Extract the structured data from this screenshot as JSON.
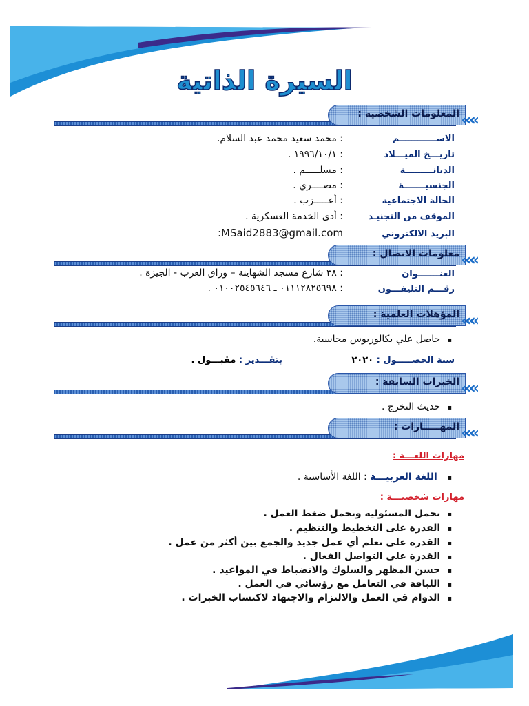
{
  "title": "السيرة الذاتية",
  "colors": {
    "accent": "#1f8fd0",
    "heading_blue": "#0d2f7a",
    "subheading_red": "#d3202c"
  },
  "sections": {
    "personal": "المعلومات الشخصية :",
    "contact": "معلومات الاتصال :",
    "qualifications": "المؤهلات العلمية :",
    "experience": "الخبرات السابقة :",
    "skills": "المهـــــارات :"
  },
  "personal": [
    {
      "label": "الاســــــــــــم",
      "value": ": محمد سعيد محمد عبد السلام."
    },
    {
      "label": "تاريـــخ الميـــلاد",
      "value": ": ١٩٩٦/١٠/١ ."
    },
    {
      "label": "الديانـــــــــة",
      "value": ": مسلـــــم ."
    },
    {
      "label": "الجنسيـــــــة",
      "value": ": مصــــري ."
    },
    {
      "label": "الحالة الاجتماعية",
      "value": ": أعـــــزب ."
    },
    {
      "label": "الموقف من التجنيـد",
      "value": ": أدى الخدمة العسكرية ."
    },
    {
      "label": "البريد الالكتروني",
      "value": ":MSaid2883@gmail.com"
    }
  ],
  "contact": [
    {
      "label": "العنـــــــوان",
      "value": ": ٣٨ شارع مسجد الشهاينة – وراق العرب - الجيزة ."
    },
    {
      "label": "رقـــم التليفـــون",
      "value": ": ٠١١١٢٨٢٥٦٩٨ ـ ٠١٠٠٢٥٤٥٦٤٦ ."
    }
  ],
  "qualifications": {
    "degree": "حاصل علي بكالوريوس محاسبة.",
    "year_label": "سنة الحصـــــول :",
    "year_value": "٢٠٢٠",
    "grade_label": "بتقـــدير :",
    "grade_value": "مقبـــول ."
  },
  "experience": [
    "حديث التخرج ."
  ],
  "skills": {
    "language_heading": "مهارات اللغـــة :",
    "languages": [
      {
        "name": "اللغة العربيـــة",
        "level": ": اللغة الأساسية ."
      }
    ],
    "personal_heading": "مهارات شخصيـــة :",
    "personal": [
      "تحمل المسئولية وتحمل ضغط العمل .",
      "القدرة على التخطيط والتنظيم .",
      "القدرة على تعلم أي عمل جديد والجمع بين أكثر من عمل .",
      "القدرة على التواصل الفعال .",
      "حسن المظهر والسلوك والانضباط في المواعيد .",
      "اللباقة في التعامل مع رؤسائي في العمل .",
      "الدوام في العمل والالتزام والاجتهاد لاكتساب الخبرات ."
    ]
  }
}
